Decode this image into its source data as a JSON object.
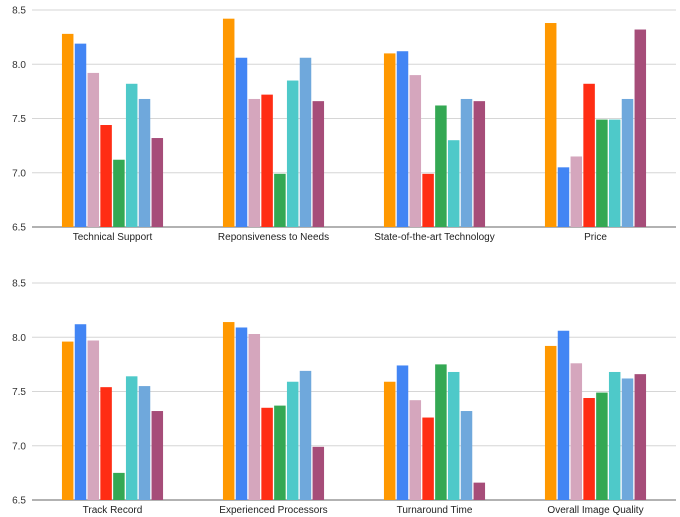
{
  "chart_data": [
    {
      "type": "bar",
      "ylim": [
        6.5,
        8.5
      ],
      "yticks": [
        "6.5",
        "7.0",
        "7.5",
        "8.0",
        "8.5"
      ],
      "grid": true,
      "categories": [
        "Technical Support",
        "Reponsiveness to Needs",
        "State-of-the-art Technology",
        "Price"
      ],
      "colors": [
        "#ff9800",
        "#4285f4",
        "#d5a6bd",
        "#ff2d14",
        "#34a853",
        "#4ec9c9",
        "#6fa8dc",
        "#a64d79"
      ],
      "series": [
        {
          "values": [
            8.28,
            8.42,
            8.1,
            8.38
          ]
        },
        {
          "values": [
            8.19,
            8.06,
            8.12,
            7.05
          ]
        },
        {
          "values": [
            7.92,
            7.68,
            7.9,
            7.15
          ]
        },
        {
          "values": [
            7.44,
            7.72,
            6.99,
            7.82
          ]
        },
        {
          "values": [
            7.12,
            6.99,
            7.62,
            7.49
          ]
        },
        {
          "values": [
            7.82,
            7.85,
            7.3,
            7.49
          ]
        },
        {
          "values": [
            7.68,
            8.06,
            7.68,
            7.68
          ]
        },
        {
          "values": [
            7.32,
            7.66,
            7.66,
            8.32
          ]
        }
      ]
    },
    {
      "type": "bar",
      "ylim": [
        6.5,
        8.5
      ],
      "yticks": [
        "6.5",
        "7.0",
        "7.5",
        "8.0",
        "8.5"
      ],
      "grid": true,
      "categories": [
        "Track Record",
        "Experienced Processors",
        "Turnaround Time",
        "Overall Image Quality"
      ],
      "colors": [
        "#ff9800",
        "#4285f4",
        "#d5a6bd",
        "#ff2d14",
        "#34a853",
        "#4ec9c9",
        "#6fa8dc",
        "#a64d79"
      ],
      "series": [
        {
          "values": [
            7.96,
            8.14,
            7.59,
            7.92
          ]
        },
        {
          "values": [
            8.12,
            8.09,
            7.74,
            8.06
          ]
        },
        {
          "values": [
            7.97,
            8.03,
            7.42,
            7.76
          ]
        },
        {
          "values": [
            7.54,
            7.35,
            7.26,
            7.44
          ]
        },
        {
          "values": [
            6.75,
            7.37,
            7.75,
            7.49
          ]
        },
        {
          "values": [
            7.64,
            7.59,
            7.68,
            7.68
          ]
        },
        {
          "values": [
            7.55,
            7.69,
            7.32,
            7.62
          ]
        },
        {
          "values": [
            7.32,
            6.99,
            6.66,
            7.66
          ]
        }
      ]
    }
  ]
}
